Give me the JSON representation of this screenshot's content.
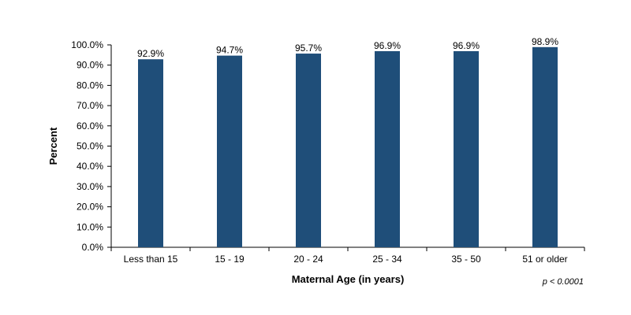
{
  "chart_data": {
    "type": "bar",
    "categories": [
      "Less than 15",
      "15 - 19",
      "20 - 24",
      "25 - 34",
      "35 - 50",
      "51 or older"
    ],
    "values": [
      92.9,
      94.7,
      95.7,
      96.9,
      96.9,
      98.9
    ],
    "data_labels": [
      "92.9%",
      "94.7%",
      "95.7%",
      "96.9%",
      "96.9%",
      "98.9%"
    ],
    "xlabel": "Maternal Age (in years)",
    "ylabel": "Percent",
    "ylim": [
      0,
      100
    ],
    "yticks": [
      0,
      10,
      20,
      30,
      40,
      50,
      60,
      70,
      80,
      90,
      100
    ],
    "ytick_labels": [
      "0.0%",
      "10.0%",
      "20.0%",
      "30.0%",
      "40.0%",
      "50.0%",
      "60.0%",
      "70.0%",
      "80.0%",
      "90.0%",
      "100.0%"
    ],
    "grid": false,
    "legend": "none",
    "bar_color": "#1f4e79",
    "note": "p < 0.0001"
  }
}
